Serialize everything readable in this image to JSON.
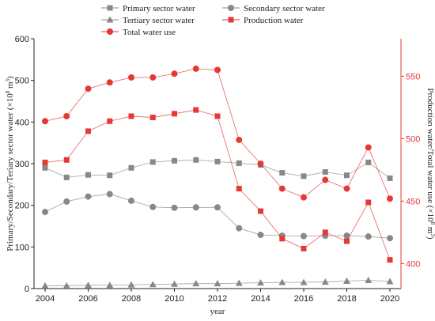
{
  "chart_data": {
    "type": "line",
    "x": [
      2004,
      2005,
      2006,
      2007,
      2008,
      2009,
      2010,
      2011,
      2012,
      2013,
      2014,
      2015,
      2016,
      2017,
      2018,
      2019,
      2020
    ],
    "xlabel": "year",
    "ylabel_left_parts": [
      "Primary/Secondary/Teriary sector water (×10",
      "8",
      " m",
      "3",
      ")"
    ],
    "ylabel_right_parts": [
      "Production water/Total water use (×10",
      "8",
      " m",
      "3",
      ")"
    ],
    "ylim_left": [
      0,
      600
    ],
    "ylim_right": [
      380,
      580
    ],
    "x_ticks": [
      "2004",
      "2006",
      "2008",
      "2010",
      "2012",
      "2014",
      "2016",
      "2018",
      "2020"
    ],
    "y_left_ticks": [
      "0",
      "100",
      "200",
      "300",
      "400",
      "500",
      "600"
    ],
    "y_right_ticks": [
      "400",
      "450",
      "500",
      "550"
    ],
    "legend_placement": "top",
    "grid": false,
    "series": [
      {
        "name": "Primary sector water",
        "axis": "left",
        "marker": "square",
        "color": "#888888",
        "values": [
          290,
          267,
          273,
          272,
          290,
          304,
          307,
          309,
          305,
          301,
          297,
          278,
          270,
          280,
          272,
          303,
          265
        ]
      },
      {
        "name": "Secondary sector water",
        "axis": "left",
        "marker": "circle",
        "color": "#888888",
        "values": [
          184,
          209,
          221,
          227,
          211,
          196,
          194,
          195,
          195,
          145,
          129,
          127,
          126,
          127,
          127,
          125,
          121
        ]
      },
      {
        "name": "Tertiary sector water",
        "axis": "left",
        "marker": "triangle",
        "color": "#888888",
        "values": [
          7,
          7,
          8,
          8,
          9,
          10,
          11,
          12,
          12,
          13,
          14,
          15,
          15,
          16,
          18,
          20,
          17
        ]
      },
      {
        "name": "Production water",
        "axis": "right",
        "marker": "square",
        "color": "#e53935",
        "values": [
          481,
          483,
          506,
          514,
          518,
          517,
          520,
          523,
          518,
          460,
          442,
          420,
          412,
          425,
          418,
          449,
          403
        ]
      },
      {
        "name": "Total water use",
        "axis": "right",
        "marker": "circle",
        "color": "#e53935",
        "values": [
          514,
          518,
          540,
          545,
          549,
          549,
          552,
          556,
          555,
          499,
          480,
          460,
          453,
          467,
          460,
          493,
          452
        ]
      }
    ]
  }
}
